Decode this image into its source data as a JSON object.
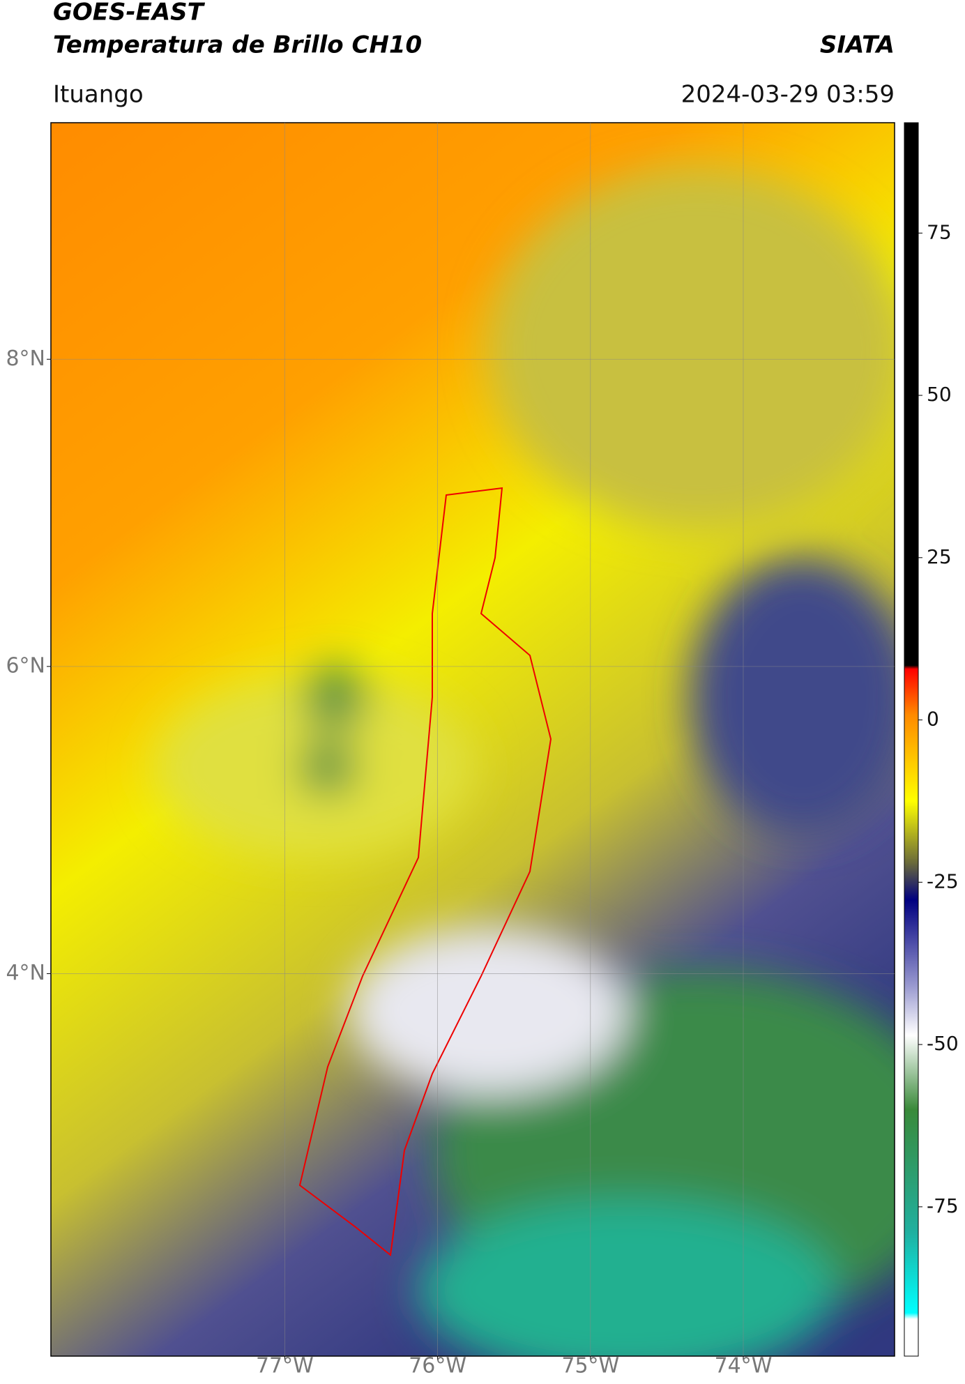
{
  "header": {
    "title": "GOES-EAST",
    "subtitle": "Temperatura de Brillo CH10",
    "source": "SIATA",
    "region": "Ituango",
    "timestamp": "2024-03-29 03:59"
  },
  "map": {
    "xlim": [
      -78.53,
      -73.01
    ],
    "ylim": [
      1.51,
      9.54
    ],
    "xticks": [
      {
        "value": -77,
        "label": "77°W"
      },
      {
        "value": -76,
        "label": "76°W"
      },
      {
        "value": -75,
        "label": "75°W"
      },
      {
        "value": -74,
        "label": "74°W"
      }
    ],
    "yticks": [
      {
        "value": 8,
        "label": "8°N"
      },
      {
        "value": 6,
        "label": "6°N"
      },
      {
        "value": 4,
        "label": "4°N"
      }
    ]
  },
  "colorbar": {
    "clim": [
      -98,
      92
    ],
    "ticks": [
      75,
      50,
      25,
      0,
      -25,
      -50,
      -75
    ]
  }
}
